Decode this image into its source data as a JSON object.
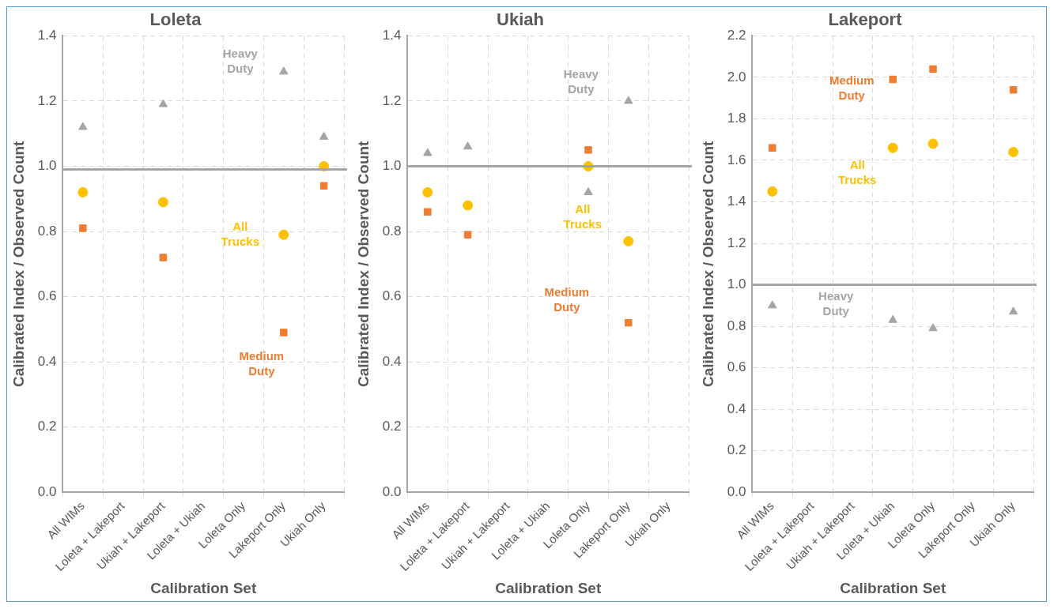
{
  "chart_data": [
    {
      "type": "scatter",
      "title": "Loleta",
      "xlabel": "Calibration Set",
      "ylabel": "Calibrated Index / Observed Count",
      "categories": [
        "All WIMs",
        "Loleta + Lakeport",
        "Ukiah + Lakeport",
        "Loleta + Ukiah",
        "Loleta Only",
        "Lakeport Only",
        "Ukiah Only"
      ],
      "series": [
        {
          "name": "Heavy Duty",
          "color": "#a5a5a5",
          "marker": "triangle",
          "values": [
            1.12,
            null,
            1.19,
            null,
            null,
            1.29,
            1.09
          ]
        },
        {
          "name": "All Trucks",
          "color": "#ffc000",
          "marker": "circle",
          "values": [
            0.92,
            null,
            0.89,
            null,
            null,
            0.79,
            1.0
          ]
        },
        {
          "name": "Medium Duty",
          "color": "#ed7d31",
          "marker": "square",
          "values": [
            0.81,
            null,
            0.72,
            null,
            null,
            0.49,
            0.94
          ]
        }
      ],
      "ref_lines": [
        {
          "axis": "y",
          "value": 0.99,
          "color": "#a5a5a5"
        }
      ],
      "ylim": [
        0,
        1.4
      ],
      "yticks": [
        {
          "value": 0,
          "label": "0.0"
        },
        0.2,
        0.4,
        0.6,
        0.8,
        {
          "value": 1,
          "label": "1.0"
        },
        1.2,
        1.4
      ],
      "grid": true,
      "legend": false
    },
    {
      "type": "scatter",
      "title": "Ukiah",
      "xlabel": "Calibration Set",
      "ylabel": "Calibrated Index / Observed Count",
      "categories": [
        "All WIMs",
        "Loleta + Lakeport",
        "Ukiah + Lakeport",
        "Loleta + Ukiah",
        "Loleta Only",
        "Lakeport Only",
        "Ukiah Only"
      ],
      "series": [
        {
          "name": "Heavy Duty",
          "color": "#a5a5a5",
          "marker": "triangle",
          "values": [
            1.04,
            1.06,
            null,
            null,
            0.92,
            1.2,
            null
          ]
        },
        {
          "name": "All Trucks",
          "color": "#ffc000",
          "marker": "circle",
          "values": [
            0.92,
            0.88,
            null,
            null,
            1.0,
            0.77,
            null
          ]
        },
        {
          "name": "Medium Duty",
          "color": "#ed7d31",
          "marker": "square",
          "values": [
            0.86,
            0.79,
            null,
            null,
            1.05,
            0.52,
            null
          ]
        }
      ],
      "ref_lines": [
        {
          "axis": "y",
          "value": 1.0,
          "color": "#a5a5a5"
        }
      ],
      "ylim": [
        0,
        1.4
      ],
      "yticks": [
        {
          "value": 0,
          "label": "0.0"
        },
        0.2,
        0.4,
        0.6,
        0.8,
        {
          "value": 1,
          "label": "1.0"
        },
        1.2,
        1.4
      ],
      "grid": true,
      "legend": false
    },
    {
      "type": "scatter",
      "title": "Lakeport",
      "xlabel": "Calibration Set",
      "ylabel": "Calibrated Index / Observed Count",
      "categories": [
        "All WIMs",
        "Loleta + Lakeport",
        "Ukiah + Lakeport",
        "Loleta + Ukiah",
        "Loleta Only",
        "Lakeport Only",
        "Ukiah Only"
      ],
      "series": [
        {
          "name": "Heavy Duty",
          "color": "#a5a5a5",
          "marker": "triangle",
          "values": [
            0.9,
            null,
            null,
            0.83,
            0.79,
            null,
            0.87
          ]
        },
        {
          "name": "All Trucks",
          "color": "#ffc000",
          "marker": "circle",
          "values": [
            1.45,
            null,
            null,
            1.66,
            1.68,
            null,
            1.64
          ]
        },
        {
          "name": "Medium Duty",
          "color": "#ed7d31",
          "marker": "square",
          "values": [
            1.66,
            null,
            null,
            1.99,
            2.04,
            null,
            1.94
          ]
        }
      ],
      "ref_lines": [
        {
          "axis": "y",
          "value": 1.0,
          "color": "#a5a5a5"
        }
      ],
      "ylim": [
        0,
        2.2
      ],
      "yticks": [
        {
          "value": 0,
          "label": "0.0"
        },
        0.2,
        0.4,
        0.6,
        0.8,
        {
          "value": 1,
          "label": "1.0"
        },
        1.2,
        1.4,
        1.6,
        1.8,
        {
          "value": 2,
          "label": "2.0"
        },
        2.2
      ],
      "grid": true,
      "legend": false
    }
  ]
}
